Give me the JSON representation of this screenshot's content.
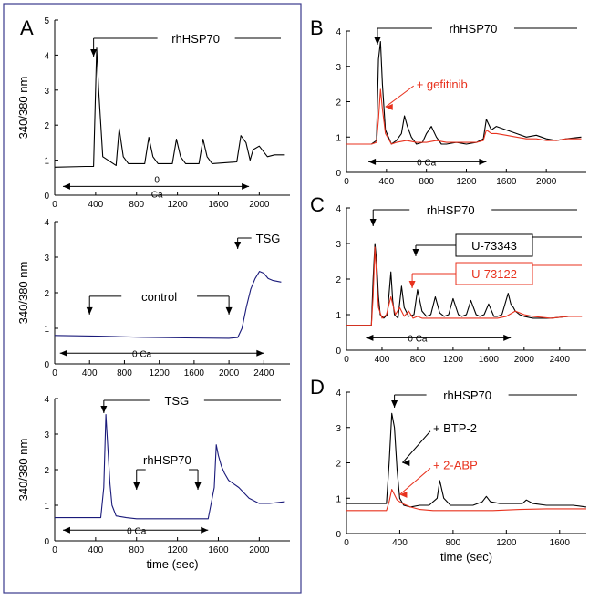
{
  "colors": {
    "black": "#000000",
    "navy": "#1a1a7a",
    "red": "#e8321e",
    "frame": "#3a3a8c"
  },
  "chart_data": [
    {
      "panel_label": "A",
      "type": "line",
      "ylabel": "340/380 nm",
      "xlabel": "",
      "xlim": [
        0,
        2300
      ],
      "ylim": [
        0,
        5
      ],
      "xticks": [
        0,
        400,
        800,
        1200,
        1600,
        2000
      ],
      "yticks": [
        0,
        1,
        2,
        3,
        4,
        5
      ],
      "annotations": {
        "agonist": "rhHSP70",
        "bath_top": "0",
        "bath_bottom": "Ca"
      },
      "series": [
        {
          "color": "#000000",
          "x": [
            0,
            300,
            380,
            395,
            410,
            430,
            470,
            600,
            630,
            670,
            720,
            880,
            920,
            960,
            1010,
            1150,
            1190,
            1230,
            1280,
            1410,
            1450,
            1490,
            1540,
            1780,
            1820,
            1870,
            1910,
            1940,
            2000,
            2080,
            2150,
            2250
          ],
          "y": [
            0.8,
            0.82,
            0.82,
            2.5,
            4.2,
            3.0,
            1.1,
            0.85,
            1.9,
            1.1,
            0.9,
            0.9,
            1.65,
            1.1,
            0.9,
            0.9,
            1.6,
            1.1,
            0.9,
            0.9,
            1.6,
            1.1,
            0.9,
            0.95,
            1.7,
            1.5,
            1.0,
            1.3,
            1.4,
            1.1,
            1.15,
            1.15
          ]
        }
      ]
    },
    {
      "panel_label": "",
      "type": "line",
      "ylabel": "340/380 nm",
      "xlabel": "",
      "xlim": [
        0,
        2700
      ],
      "ylim": [
        0,
        4
      ],
      "xticks": [
        0,
        400,
        800,
        1200,
        1600,
        2000,
        2400
      ],
      "yticks": [
        0,
        1,
        2,
        3,
        4
      ],
      "annotations": {
        "control": "control",
        "agonist": "TSG",
        "bath": "0 Ca"
      },
      "series": [
        {
          "color": "#1a1a7a",
          "x": [
            0,
            500,
            1000,
            1500,
            2000,
            2100,
            2150,
            2200,
            2250,
            2300,
            2350,
            2400,
            2450,
            2500,
            2600
          ],
          "y": [
            0.8,
            0.78,
            0.75,
            0.73,
            0.72,
            0.74,
            1.0,
            1.6,
            2.1,
            2.4,
            2.6,
            2.55,
            2.4,
            2.35,
            2.3
          ]
        }
      ]
    },
    {
      "panel_label": "",
      "type": "line",
      "ylabel": "340/380 nm",
      "xlabel": "time (sec)",
      "xlim": [
        0,
        2300
      ],
      "ylim": [
        0,
        4
      ],
      "xticks": [
        0,
        400,
        800,
        1200,
        1600,
        2000
      ],
      "yticks": [
        0,
        1,
        2,
        3,
        4
      ],
      "annotations": {
        "agonist": "TSG",
        "middle": "rhHSP70",
        "bath": "0 Ca"
      },
      "series": [
        {
          "color": "#1a1a7a",
          "x": [
            0,
            450,
            480,
            500,
            520,
            540,
            560,
            600,
            700,
            800,
            1000,
            1200,
            1400,
            1500,
            1560,
            1580,
            1600,
            1630,
            1660,
            1700,
            1750,
            1800,
            1900,
            2000,
            2100,
            2250
          ],
          "y": [
            0.65,
            0.65,
            1.5,
            3.55,
            2.6,
            1.6,
            1.0,
            0.7,
            0.65,
            0.62,
            0.62,
            0.62,
            0.62,
            0.62,
            1.5,
            2.7,
            2.4,
            2.1,
            1.9,
            1.7,
            1.6,
            1.5,
            1.2,
            1.05,
            1.05,
            1.1
          ]
        }
      ]
    },
    {
      "panel_label": "B",
      "type": "line",
      "ylabel": "",
      "xlabel": "",
      "xlim": [
        0,
        2400
      ],
      "ylim": [
        0,
        4
      ],
      "xticks": [
        0,
        400,
        800,
        1200,
        1600,
        2000
      ],
      "yticks": [
        0,
        1,
        2,
        3,
        4
      ],
      "annotations": {
        "agonist": "rhHSP70",
        "inhibitor": "+ gefitinib",
        "bath": "0 Ca"
      },
      "series": [
        {
          "color": "#000000",
          "x": [
            0,
            250,
            300,
            320,
            340,
            360,
            390,
            450,
            500,
            550,
            580,
            610,
            650,
            700,
            760,
            800,
            850,
            900,
            950,
            1000,
            1100,
            1200,
            1300,
            1370,
            1400,
            1450,
            1500,
            1600,
            1700,
            1800,
            1900,
            2000,
            2100,
            2200,
            2350
          ],
          "y": [
            0.8,
            0.8,
            0.9,
            3.2,
            3.7,
            2.5,
            1.2,
            0.8,
            0.9,
            1.1,
            1.6,
            1.3,
            1.0,
            0.8,
            0.85,
            1.1,
            1.3,
            1.0,
            0.8,
            0.8,
            0.85,
            0.8,
            0.85,
            0.95,
            1.5,
            1.2,
            1.3,
            1.2,
            1.1,
            1.0,
            1.05,
            0.95,
            0.9,
            0.95,
            1.0
          ]
        },
        {
          "color": "#e8321e",
          "x": [
            0,
            250,
            300,
            320,
            340,
            360,
            390,
            450,
            500,
            600,
            700,
            800,
            900,
            1000,
            1100,
            1200,
            1300,
            1370,
            1400,
            1450,
            1500,
            1600,
            1700,
            1800,
            1900,
            2000,
            2100,
            2200,
            2350
          ],
          "y": [
            0.8,
            0.8,
            0.85,
            1.5,
            2.35,
            1.8,
            1.1,
            0.8,
            0.85,
            0.9,
            0.85,
            0.85,
            0.9,
            0.85,
            0.85,
            0.85,
            0.85,
            0.9,
            1.2,
            1.1,
            1.1,
            1.05,
            1.0,
            0.95,
            0.95,
            0.9,
            0.9,
            0.95,
            0.95
          ]
        }
      ]
    },
    {
      "panel_label": "C",
      "type": "line",
      "ylabel": "",
      "xlabel": "",
      "xlim": [
        0,
        2700
      ],
      "ylim": [
        0,
        4
      ],
      "xticks": [
        0,
        400,
        800,
        1200,
        1600,
        2000,
        2400
      ],
      "yticks": [
        0,
        1,
        2,
        3,
        4
      ],
      "annotations": {
        "agonist": "rhHSP70",
        "inhibitor1": "U-73343",
        "inhibitor2": "U-73122",
        "bath": "0 Ca"
      },
      "series": [
        {
          "color": "#000000",
          "x": [
            0,
            280,
            300,
            320,
            340,
            360,
            380,
            420,
            460,
            500,
            520,
            540,
            580,
            620,
            650,
            700,
            760,
            800,
            850,
            900,
            950,
            1000,
            1050,
            1100,
            1150,
            1200,
            1260,
            1300,
            1350,
            1400,
            1460,
            1500,
            1550,
            1600,
            1660,
            1700,
            1750,
            1820,
            1850,
            1880,
            1900,
            1950,
            2000,
            2100,
            2300,
            2500,
            2650
          ],
          "y": [
            0.7,
            0.7,
            2.0,
            3.0,
            2.5,
            1.5,
            1.0,
            0.9,
            1.0,
            2.2,
            1.4,
            1.0,
            0.9,
            1.8,
            1.2,
            0.95,
            1.0,
            1.7,
            1.1,
            0.95,
            1.0,
            1.5,
            1.05,
            0.95,
            1.0,
            1.45,
            1.0,
            0.95,
            1.0,
            1.4,
            1.0,
            0.95,
            1.0,
            1.3,
            0.95,
            0.95,
            1.0,
            1.6,
            1.3,
            1.2,
            1.1,
            1.0,
            0.95,
            0.9,
            0.9,
            0.95,
            0.95
          ]
        },
        {
          "color": "#e8321e",
          "x": [
            0,
            280,
            300,
            320,
            340,
            360,
            400,
            450,
            500,
            550,
            600,
            650,
            700,
            750,
            800,
            850,
            900,
            1000,
            1100,
            1200,
            1300,
            1400,
            1500,
            1600,
            1700,
            1800,
            1900,
            2000,
            2100,
            2300,
            2500,
            2650
          ],
          "y": [
            0.7,
            0.7,
            1.5,
            2.9,
            2.0,
            1.2,
            0.9,
            1.0,
            1.5,
            1.0,
            1.2,
            0.95,
            1.1,
            0.9,
            0.95,
            0.9,
            0.9,
            0.9,
            0.9,
            0.9,
            0.9,
            0.9,
            0.9,
            0.9,
            0.9,
            0.95,
            1.1,
            1.0,
            0.95,
            0.9,
            0.95,
            0.95
          ]
        }
      ]
    },
    {
      "panel_label": "D",
      "type": "line",
      "ylabel": "",
      "xlabel": "time (sec)",
      "xlim": [
        0,
        1800
      ],
      "ylim": [
        0,
        4
      ],
      "xticks": [
        0,
        400,
        800,
        1200,
        1600
      ],
      "yticks": [
        0,
        1,
        2,
        3,
        4
      ],
      "annotations": {
        "agonist": "rhHSP70",
        "inhibitor1": "+ BTP-2",
        "inhibitor2": "+ 2-ABP"
      },
      "series": [
        {
          "color": "#000000",
          "x": [
            0,
            300,
            320,
            340,
            360,
            380,
            400,
            430,
            480,
            550,
            620,
            680,
            700,
            730,
            780,
            850,
            950,
            1020,
            1050,
            1080,
            1150,
            1250,
            1320,
            1350,
            1400,
            1500,
            1600,
            1700,
            1800
          ],
          "y": [
            0.85,
            0.85,
            2.0,
            3.4,
            3.0,
            1.8,
            1.0,
            0.8,
            0.75,
            0.8,
            0.8,
            1.0,
            1.5,
            1.0,
            0.8,
            0.8,
            0.8,
            0.9,
            1.05,
            0.9,
            0.85,
            0.85,
            0.85,
            0.95,
            0.85,
            0.8,
            0.8,
            0.8,
            0.75
          ]
        },
        {
          "color": "#e8321e",
          "x": [
            0,
            300,
            320,
            340,
            360,
            380,
            420,
            480,
            550,
            650,
            750,
            900,
            1100,
            1300,
            1500,
            1700,
            1800
          ],
          "y": [
            0.65,
            0.65,
            0.9,
            1.25,
            1.1,
            0.95,
            0.85,
            0.75,
            0.68,
            0.65,
            0.65,
            0.65,
            0.65,
            0.68,
            0.7,
            0.7,
            0.7
          ]
        }
      ]
    }
  ]
}
